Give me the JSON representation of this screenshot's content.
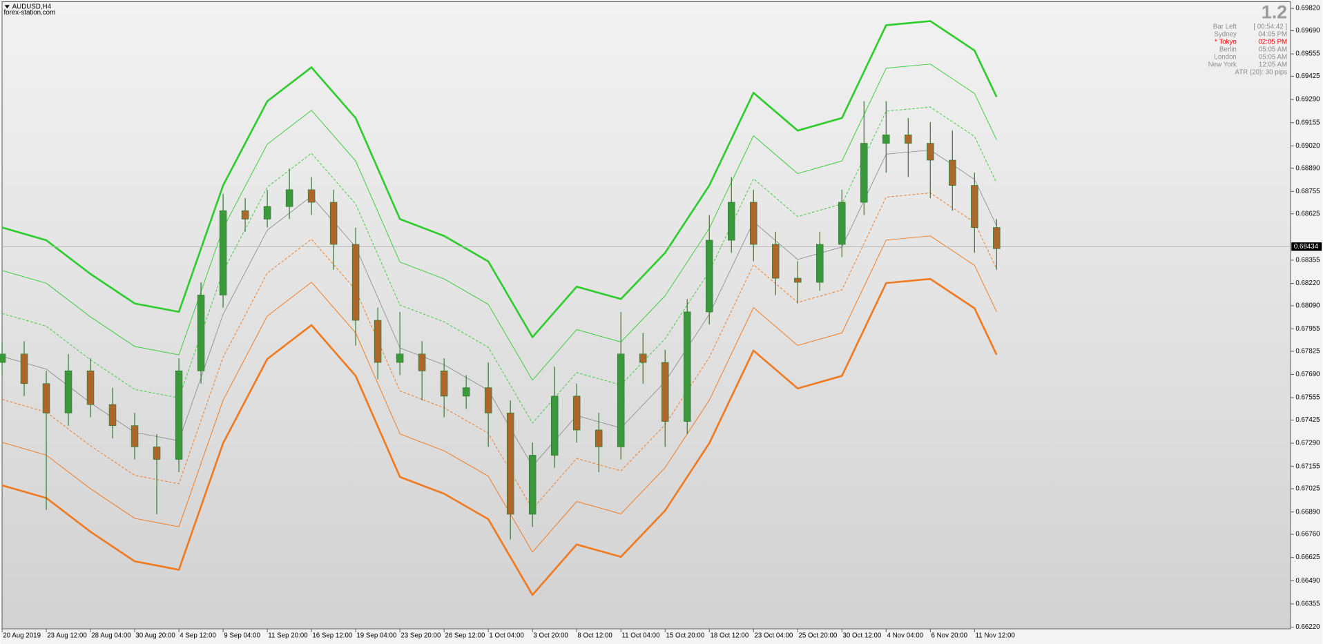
{
  "chart_data": {
    "type": "candlestick",
    "title": "AUDUSD,H4",
    "subtitle": "forex-station.com",
    "info_panel": {
      "version": "1.2",
      "rows": [
        {
          "label": "Bar Left",
          "value": "[ 00:54:42 ]"
        },
        {
          "label": "Sydney",
          "value": "04:05 PM"
        },
        {
          "label": "* Tokyo",
          "value": "02:05 PM",
          "color": "#ff0000"
        },
        {
          "label": "Berlin",
          "value": "05:05 AM"
        },
        {
          "label": "London",
          "value": "05:05 AM"
        },
        {
          "label": "New York",
          "value": "12:05 AM"
        }
      ],
      "footer": "ATR (20): 30 pips"
    },
    "categories": [
      "20 Aug 2019",
      null,
      "23 Aug 12:00",
      null,
      "28 Aug 04:00",
      null,
      "30 Aug 20:00",
      null,
      "4 Sep 12:00",
      null,
      "9 Sep 04:00",
      null,
      "11 Sep 20:00",
      null,
      "16 Sep 12:00",
      null,
      "19 Sep 04:00",
      null,
      "23 Sep 20:00",
      null,
      "26 Sep 12:00",
      null,
      "1 Oct 04:00",
      null,
      "3 Oct 20:00",
      null,
      "8 Oct 12:00",
      null,
      "11 Oct 04:00",
      null,
      "15 Oct 20:00",
      null,
      "18 Oct 12:00",
      null,
      "23 Oct 04:00",
      null,
      "25 Oct 20:00",
      null,
      "30 Oct 12:00",
      null,
      "4 Nov 04:00",
      null,
      "6 Nov 20:00",
      null,
      "11 Nov 12:00",
      null
    ],
    "open": [
      0.6776,
      0.67809,
      0.67637,
      0.67466,
      0.67711,
      0.67515,
      0.67392,
      0.67269,
      0.67196,
      0.67711,
      0.68152,
      0.68643,
      0.68594,
      0.68667,
      0.68765,
      0.68692,
      0.68447,
      0.68005,
      0.6776,
      0.67809,
      0.67711,
      0.67564,
      0.67613,
      0.67466,
      0.66877,
      0.6722,
      0.67564,
      0.67367,
      0.67269,
      0.67809,
      0.6776,
      0.67417,
      0.68054,
      0.68471,
      0.68692,
      0.68447,
      0.6825,
      0.68226,
      0.68447,
      0.68692,
      0.69035,
      0.69084,
      0.69035,
      0.68937,
      0.6879,
      0.68545
    ],
    "high": [
      0.67883,
      0.67883,
      0.67711,
      0.67809,
      0.67784,
      0.67613,
      0.67466,
      0.67343,
      0.67784,
      0.68226,
      0.68741,
      0.68716,
      0.68765,
      0.68888,
      0.68839,
      0.68765,
      0.68545,
      0.68079,
      0.68054,
      0.67883,
      0.67784,
      0.67686,
      0.6776,
      0.67539,
      0.67294,
      0.67735,
      0.67637,
      0.67466,
      0.68054,
      0.67932,
      0.67833,
      0.68129,
      0.68618,
      0.68839,
      0.68765,
      0.6852,
      0.68348,
      0.6852,
      0.68765,
      0.6928,
      0.6928,
      0.69182,
      0.69158,
      0.69109,
      0.68864,
      0.68594
    ],
    "low": [
      0.67686,
      0.67564,
      0.66902,
      0.67392,
      0.67441,
      0.67318,
      0.67196,
      0.66877,
      0.67122,
      0.67637,
      0.68079,
      0.6852,
      0.68545,
      0.68594,
      0.68618,
      0.68299,
      0.67858,
      0.67662,
      0.67686,
      0.67539,
      0.67441,
      0.6749,
      0.67269,
      0.6673,
      0.66803,
      0.67147,
      0.67294,
      0.67122,
      0.67196,
      0.67637,
      0.67269,
      0.67343,
      0.67981,
      0.68398,
      0.68348,
      0.68152,
      0.68103,
      0.68177,
      0.68373,
      0.68618,
      0.68864,
      0.68839,
      0.68716,
      0.68643,
      0.68398,
      0.68299
    ],
    "close": [
      0.67809,
      0.67637,
      0.67466,
      0.67711,
      0.67515,
      0.67392,
      0.67269,
      0.67196,
      0.67711,
      0.68152,
      0.68643,
      0.68594,
      0.68667,
      0.68765,
      0.68692,
      0.68447,
      0.68005,
      0.6776,
      0.67809,
      0.67711,
      0.67564,
      0.67613,
      0.67466,
      0.66877,
      0.6722,
      0.67564,
      0.67367,
      0.67269,
      0.67809,
      0.6776,
      0.67417,
      0.68054,
      0.68471,
      0.68692,
      0.68447,
      0.6825,
      0.68226,
      0.68447,
      0.68692,
      0.69035,
      0.69084,
      0.69035,
      0.68937,
      0.6879,
      0.68545,
      0.68422
    ],
    "up_color": "#3a9a3a",
    "down_color": "#b0662a",
    "wick_color": "#2f7d2f",
    "series": [
      {
        "color": "#2ecc2e",
        "style": "solid",
        "width": 2.2,
        "x": [
          0,
          2,
          4,
          6,
          8,
          10,
          12,
          14,
          16,
          18,
          20,
          22,
          24,
          26,
          28,
          30,
          32,
          34,
          36,
          38,
          40,
          42,
          44,
          45
        ],
        "values": [
          0.68545,
          0.68471,
          0.68275,
          0.68103,
          0.68054,
          0.6879,
          0.6928,
          0.69477,
          0.69182,
          0.68594,
          0.68496,
          0.68348,
          0.67907,
          0.68201,
          0.68129,
          0.68398,
          0.6879,
          0.69329,
          0.69109,
          0.69182,
          0.69722,
          0.69746,
          0.69575,
          0.69305
        ]
      },
      {
        "color": "#3ccc3c",
        "style": "solid",
        "width": 0.8,
        "x": [
          0,
          2,
          4,
          6,
          8,
          10,
          12,
          14,
          16,
          18,
          20,
          22,
          24,
          26,
          28,
          30,
          32,
          34,
          36,
          38,
          40,
          42,
          44,
          45
        ],
        "values": [
          0.68295,
          0.68221,
          0.68025,
          0.67853,
          0.67804,
          0.6854,
          0.6903,
          0.69227,
          0.68932,
          0.68344,
          0.68246,
          0.68098,
          0.67657,
          0.67951,
          0.67879,
          0.68148,
          0.6854,
          0.69079,
          0.68859,
          0.68932,
          0.69472,
          0.69496,
          0.69325,
          0.69055
        ]
      },
      {
        "color": "#3ccc3c",
        "style": "dashed",
        "width": 0.8,
        "x": [
          0,
          2,
          4,
          6,
          8,
          10,
          12,
          14,
          16,
          18,
          20,
          22,
          24,
          26,
          28,
          30,
          32,
          34,
          36,
          38,
          40,
          42,
          44,
          45
        ],
        "values": [
          0.68045,
          0.67971,
          0.67775,
          0.67603,
          0.67554,
          0.6829,
          0.6878,
          0.68977,
          0.68682,
          0.68094,
          0.67996,
          0.67848,
          0.67407,
          0.67701,
          0.67629,
          0.67898,
          0.6829,
          0.68829,
          0.68609,
          0.68682,
          0.69222,
          0.69246,
          0.69075,
          0.68805
        ]
      },
      {
        "color": "#8a8a8a",
        "style": "solid",
        "width": 0.7,
        "x": [
          0,
          2,
          4,
          6,
          8,
          10,
          12,
          14,
          16,
          18,
          20,
          22,
          24,
          26,
          28,
          30,
          32,
          34,
          36,
          38,
          40,
          42,
          44,
          45
        ],
        "values": [
          0.67795,
          0.67721,
          0.67525,
          0.67353,
          0.67304,
          0.6804,
          0.6853,
          0.68727,
          0.68432,
          0.67844,
          0.67746,
          0.67598,
          0.67157,
          0.67451,
          0.67379,
          0.67648,
          0.6804,
          0.68579,
          0.68359,
          0.68432,
          0.68972,
          0.68996,
          0.68825,
          0.68555
        ]
      },
      {
        "color": "#f07a20",
        "style": "dashed",
        "width": 0.8,
        "x": [
          0,
          2,
          4,
          6,
          8,
          10,
          12,
          14,
          16,
          18,
          20,
          22,
          24,
          26,
          28,
          30,
          32,
          34,
          36,
          38,
          40,
          42,
          44,
          45
        ],
        "values": [
          0.67545,
          0.67471,
          0.67275,
          0.67103,
          0.67054,
          0.6779,
          0.6828,
          0.68477,
          0.68182,
          0.67594,
          0.67496,
          0.67348,
          0.66907,
          0.67201,
          0.67129,
          0.67398,
          0.6779,
          0.68329,
          0.68109,
          0.68182,
          0.68722,
          0.68746,
          0.68575,
          0.68305
        ]
      },
      {
        "color": "#f07a20",
        "style": "solid",
        "width": 0.8,
        "x": [
          0,
          2,
          4,
          6,
          8,
          10,
          12,
          14,
          16,
          18,
          20,
          22,
          24,
          26,
          28,
          30,
          32,
          34,
          36,
          38,
          40,
          42,
          44,
          45
        ],
        "values": [
          0.67295,
          0.67221,
          0.67025,
          0.66853,
          0.66804,
          0.6754,
          0.6803,
          0.68227,
          0.67932,
          0.67344,
          0.67246,
          0.67098,
          0.66657,
          0.66951,
          0.66879,
          0.67148,
          0.6754,
          0.68079,
          0.67859,
          0.67932,
          0.68472,
          0.68496,
          0.68325,
          0.68055
        ]
      },
      {
        "color": "#f07a20",
        "style": "solid",
        "width": 2.2,
        "x": [
          0,
          2,
          4,
          6,
          8,
          10,
          12,
          14,
          16,
          18,
          20,
          22,
          24,
          26,
          28,
          30,
          32,
          34,
          36,
          38,
          40,
          42,
          44,
          45
        ],
        "values": [
          0.67045,
          0.66971,
          0.66775,
          0.66603,
          0.66554,
          0.6729,
          0.6778,
          0.67977,
          0.67682,
          0.67094,
          0.66996,
          0.66848,
          0.66407,
          0.66701,
          0.66629,
          0.66898,
          0.6729,
          0.67829,
          0.67609,
          0.67682,
          0.68222,
          0.68246,
          0.68075,
          0.67805
        ]
      }
    ],
    "current_price": {
      "value": 0.68434,
      "label": "0.68434"
    },
    "xlim": [
      0,
      58.3
    ],
    "ylim": [
      0.6621,
      0.69859
    ],
    "yticks": [
      {
        "value": 0.6982,
        "label": "0.69820"
      },
      {
        "value": 0.6969,
        "label": "0.69690"
      },
      {
        "value": 0.69555,
        "label": "0.69555"
      },
      {
        "value": 0.69425,
        "label": "0.69425"
      },
      {
        "value": 0.6929,
        "label": "0.69290"
      },
      {
        "value": 0.69155,
        "label": "0.69155"
      },
      {
        "value": 0.6902,
        "label": "0.69020"
      },
      {
        "value": 0.6889,
        "label": "0.68890"
      },
      {
        "value": 0.68755,
        "label": "0.68755"
      },
      {
        "value": 0.68625,
        "label": "0.68625"
      },
      {
        "value": 0.68355,
        "label": "0.68355"
      },
      {
        "value": 0.6822,
        "label": "0.68220"
      },
      {
        "value": 0.6809,
        "label": "0.68090"
      },
      {
        "value": 0.67955,
        "label": "0.67955"
      },
      {
        "value": 0.67825,
        "label": "0.67825"
      },
      {
        "value": 0.6769,
        "label": "0.67690"
      },
      {
        "value": 0.67555,
        "label": "0.67555"
      },
      {
        "value": 0.67425,
        "label": "0.67425"
      },
      {
        "value": 0.6729,
        "label": "0.67290"
      },
      {
        "value": 0.67155,
        "label": "0.67155"
      },
      {
        "value": 0.67025,
        "label": "0.67025"
      },
      {
        "value": 0.6689,
        "label": "0.66890"
      },
      {
        "value": 0.6676,
        "label": "0.66760"
      },
      {
        "value": 0.66625,
        "label": "0.66625"
      },
      {
        "value": 0.6649,
        "label": "0.66490"
      },
      {
        "value": 0.66355,
        "label": "0.66355"
      },
      {
        "value": 0.6622,
        "label": "0.66220"
      }
    ]
  }
}
